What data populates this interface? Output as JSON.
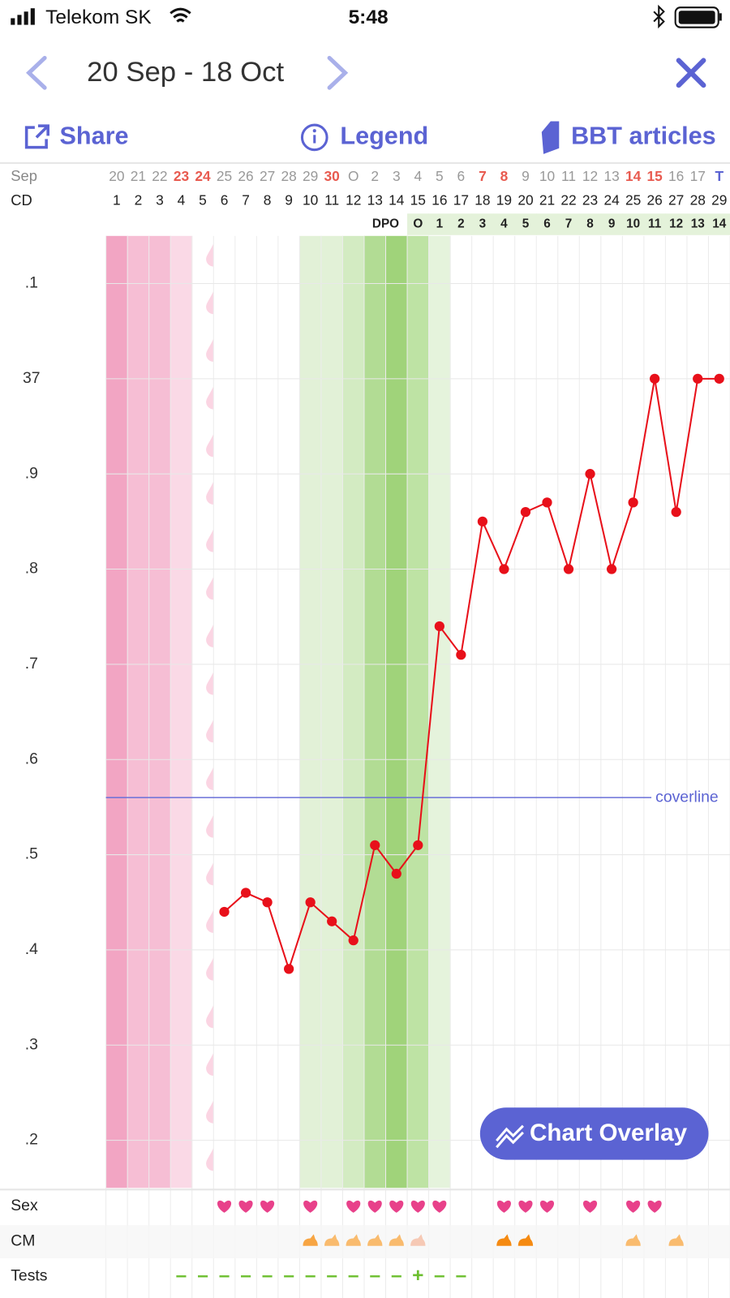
{
  "status_bar": {
    "carrier": "Telekom SK",
    "time": "5:48"
  },
  "header": {
    "date_range": "20 Sep - 18 Oct"
  },
  "toolbar": {
    "share": "Share",
    "legend": "Legend",
    "articles": "BBT articles"
  },
  "chart_data": {
    "type": "line",
    "month_label": "Sep",
    "x_label": "CD",
    "dpo_label": "DPO",
    "dates": [
      "20",
      "21",
      "22",
      "23",
      "24",
      "25",
      "26",
      "27",
      "28",
      "29",
      "30",
      "O",
      "2",
      "3",
      "4",
      "5",
      "6",
      "7",
      "8",
      "9",
      "10",
      "11",
      "12",
      "13",
      "14",
      "15",
      "16",
      "17",
      "T"
    ],
    "date_colors": [
      "#999999",
      "#999999",
      "#999999",
      "#e85a4f",
      "#e85a4f",
      "#999999",
      "#999999",
      "#999999",
      "#999999",
      "#999999",
      "#e85a4f",
      "#999999",
      "#999999",
      "#999999",
      "#999999",
      "#999999",
      "#999999",
      "#e85a4f",
      "#e85a4f",
      "#999999",
      "#999999",
      "#999999",
      "#999999",
      "#999999",
      "#e85a4f",
      "#e85a4f",
      "#999999",
      "#999999",
      "#5b63d3"
    ],
    "categories": [
      "1",
      "2",
      "3",
      "4",
      "5",
      "6",
      "7",
      "8",
      "9",
      "10",
      "11",
      "12",
      "13",
      "14",
      "15",
      "16",
      "17",
      "18",
      "19",
      "20",
      "21",
      "22",
      "23",
      "24",
      "25",
      "26",
      "27",
      "28",
      "29"
    ],
    "dpo": [
      null,
      null,
      null,
      null,
      null,
      null,
      null,
      null,
      null,
      null,
      null,
      null,
      null,
      null,
      "O",
      "1",
      "2",
      "3",
      "4",
      "5",
      "6",
      "7",
      "8",
      "9",
      "10",
      "11",
      "12",
      "13",
      "14"
    ],
    "values": [
      null,
      null,
      null,
      null,
      null,
      36.44,
      36.46,
      36.45,
      36.38,
      36.45,
      36.43,
      36.41,
      36.51,
      36.48,
      36.51,
      36.74,
      36.71,
      36.85,
      36.8,
      36.86,
      36.87,
      36.8,
      36.9,
      36.8,
      36.87,
      37,
      36.86,
      37,
      37
    ],
    "color": "#e8101a",
    "column_shades": [
      "#f2a5c3",
      "#f6bed4",
      "#f6bed4",
      "#fad9e6",
      null,
      null,
      null,
      null,
      null,
      "#e2f1d7",
      "#e2f1d7",
      "#d3ebc2",
      "#b2dc94",
      "#a0d37a",
      "#bee3a4",
      "#e5f3dc",
      null,
      null,
      null,
      null,
      null,
      null,
      null,
      null,
      null,
      null,
      null,
      null,
      null
    ],
    "spotting_days": [
      5
    ],
    "coverline": {
      "value": 36.56,
      "label": "coverline",
      "color": "#6a70d8"
    },
    "ylim": [
      36.15,
      37.15
    ],
    "yticks": [
      {
        "value": 37.1,
        "label": ".1"
      },
      37,
      {
        "value": 36.9,
        "label": ".9"
      },
      {
        "value": 36.8,
        "label": ".8"
      },
      {
        "value": 36.7,
        "label": ".7"
      },
      {
        "value": 36.6,
        "label": ".6"
      },
      {
        "value": 36.5,
        "label": ".5"
      },
      {
        "value": 36.4,
        "label": ".4"
      },
      {
        "value": 36.3,
        "label": ".3"
      },
      {
        "value": 36.2,
        "label": ".2"
      }
    ],
    "grid": true
  },
  "overlay_button": "Chart Overlay",
  "rows": [
    {
      "label": "Sex",
      "days": [
        6,
        7,
        8,
        10,
        12,
        13,
        14,
        15,
        16,
        19,
        20,
        21,
        23,
        25,
        26
      ],
      "color": "#e8418a"
    },
    {
      "label": "CM",
      "days": [
        10,
        11,
        12,
        13,
        14,
        15,
        19,
        20,
        25,
        27
      ],
      "colors": [
        "#f7a543",
        "#f9bb6e",
        "#f9bb6e",
        "#f9bb6e",
        "#f9bb6e",
        "#f6c9b5",
        "#f58a12",
        "#f58a12",
        "#f9bb6e",
        "#f9bb6e"
      ]
    },
    {
      "label": "Tests",
      "marks": [
        null,
        null,
        null,
        "–",
        "–",
        "–",
        "–",
        "–",
        "–",
        "–",
        "–",
        "–",
        "–",
        "–",
        "+",
        "–",
        "–",
        null,
        null,
        null,
        null,
        null,
        null,
        null,
        null,
        null,
        null,
        null,
        null
      ],
      "color": "#6cbf2f"
    }
  ]
}
